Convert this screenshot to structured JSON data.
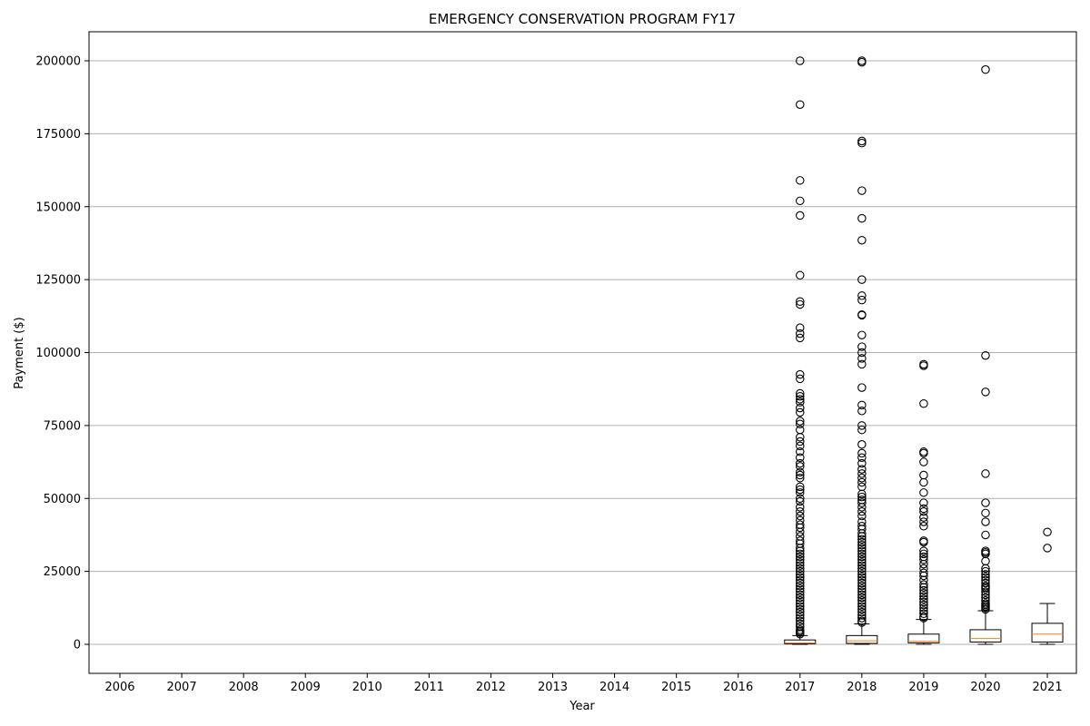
{
  "chart_data": {
    "type": "box",
    "title": "EMERGENCY CONSERVATION PROGRAM FY17",
    "xlabel": "Year",
    "ylabel": "Payment ($)",
    "categories": [
      "2006",
      "2007",
      "2008",
      "2009",
      "2010",
      "2011",
      "2012",
      "2013",
      "2014",
      "2015",
      "2016",
      "2017",
      "2018",
      "2019",
      "2020",
      "2021"
    ],
    "ylim": [
      -10000,
      210000
    ],
    "yticks": [
      0,
      25000,
      50000,
      75000,
      100000,
      125000,
      150000,
      175000,
      200000
    ],
    "grid": "horizontal",
    "colors": {
      "box": "#000000",
      "median": "#ff7f0e",
      "grid": "#b0b0b0",
      "outlier": "#000000"
    },
    "boxes": [
      {
        "year": "2017",
        "whisker_low": 0,
        "q1": 200,
        "median": 500,
        "q3": 1500,
        "whisker_high": 3000,
        "outliers": [
          200000,
          185000,
          159000,
          152000,
          147000,
          126500,
          117500,
          116500,
          108500,
          106500,
          105000,
          92500,
          91000,
          86000,
          85000,
          84000,
          83000,
          81000,
          79500,
          76500,
          75500,
          73500,
          71000,
          69500,
          68000,
          66000,
          64000,
          62000,
          61000,
          59000,
          58000,
          57000,
          54000,
          53000,
          52000,
          50000,
          49000,
          47000,
          45500,
          44000,
          42500,
          41000,
          40000,
          38500,
          37000,
          35500,
          34500,
          33000,
          32000,
          31000,
          30000,
          29000,
          28000,
          27000,
          26000,
          25000,
          24000,
          23000,
          22000,
          21000,
          20000,
          19000,
          18000,
          17000,
          16000,
          15000,
          14000,
          13000,
          12000,
          11000,
          10000,
          9000,
          8000,
          7000,
          6000,
          5000,
          4500,
          4000,
          3500
        ]
      },
      {
        "year": "2018",
        "whisker_low": 0,
        "q1": 300,
        "median": 1200,
        "q3": 3000,
        "whisker_high": 7000,
        "outliers": [
          200000,
          199500,
          172500,
          171800,
          155500,
          146000,
          138500,
          125000,
          119500,
          118000,
          113000,
          112800,
          106000,
          102000,
          100000,
          98000,
          96000,
          88000,
          82000,
          80000,
          75000,
          73500,
          68500,
          65500,
          64000,
          62000,
          60000,
          58500,
          57000,
          55500,
          54000,
          51500,
          50500,
          49500,
          48500,
          47000,
          45500,
          44000,
          42000,
          40500,
          39500,
          38000,
          37000,
          36000,
          35000,
          34000,
          33000,
          32000,
          31000,
          30000,
          29000,
          28000,
          27000,
          26000,
          25000,
          24000,
          23000,
          22000,
          21000,
          20000,
          19000,
          18000,
          17000,
          16000,
          15000,
          14000,
          13000,
          12000,
          11000,
          10000,
          9000,
          8000,
          7500
        ]
      },
      {
        "year": "2019",
        "whisker_low": 0,
        "q1": 500,
        "median": 1000,
        "q3": 3500,
        "whisker_high": 8500,
        "outliers": [
          96000,
          95500,
          82500,
          66000,
          65500,
          62500,
          58000,
          55500,
          52000,
          48500,
          46500,
          45500,
          43500,
          42000,
          40500,
          35500,
          35000,
          32000,
          31000,
          30000,
          29000,
          27500,
          26000,
          24500,
          23500,
          22000,
          20500,
          19500,
          18500,
          17500,
          16500,
          15500,
          14500,
          13500,
          12500,
          11500,
          10500,
          9500,
          9000
        ]
      },
      {
        "year": "2020",
        "whisker_low": 0,
        "q1": 800,
        "median": 2000,
        "q3": 5000,
        "whisker_high": 11500,
        "outliers": [
          197000,
          99000,
          86500,
          58500,
          48500,
          45000,
          42000,
          37500,
          32000,
          31500,
          31000,
          28500,
          26000,
          25000,
          24000,
          23000,
          22000,
          21000,
          20000,
          19500,
          19000,
          18000,
          17000,
          16000,
          15000,
          14000,
          13500,
          13000,
          12500,
          12000
        ]
      },
      {
        "year": "2021",
        "whisker_low": 0,
        "q1": 800,
        "median": 3500,
        "q3": 7200,
        "whisker_high": 14000,
        "outliers": [
          38500,
          33000
        ]
      }
    ]
  }
}
